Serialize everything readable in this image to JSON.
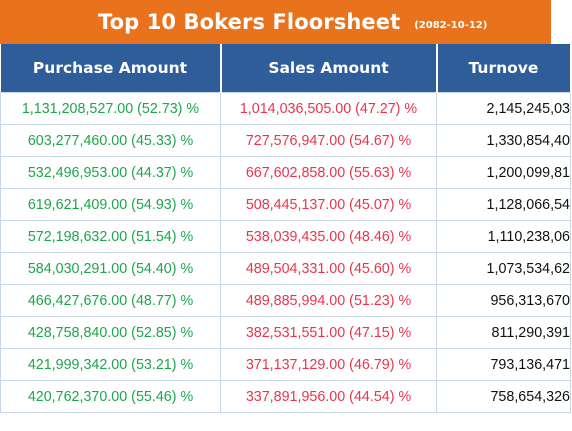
{
  "banner": {
    "title": "Top 10 Bokers Floorsheet",
    "date": "(2082-10-12)"
  },
  "colors": {
    "banner_bg": "#e9731c",
    "header_bg": "#2e5d9a",
    "purchase_text": "#1da64a",
    "sales_text": "#e8354d"
  },
  "table": {
    "headers": [
      "Purchase Amount",
      "Sales Amount",
      "Turnove"
    ],
    "rows": [
      {
        "purchase": "1,131,208,527.00 (52.73) %",
        "sales": "1,014,036,505.00 (47.27) %",
        "turnover": "2,145,245,03"
      },
      {
        "purchase": "603,277,460.00 (45.33) %",
        "sales": "727,576,947.00 (54.67) %",
        "turnover": "1,330,854,40"
      },
      {
        "purchase": "532,496,953.00 (44.37) %",
        "sales": "667,602,858.00 (55.63) %",
        "turnover": "1,200,099,81"
      },
      {
        "purchase": "619,621,409.00 (54.93) %",
        "sales": "508,445,137.00 (45.07) %",
        "turnover": "1,128,066,54"
      },
      {
        "purchase": "572,198,632.00 (51.54) %",
        "sales": "538,039,435.00 (48.46) %",
        "turnover": "1,110,238,06"
      },
      {
        "purchase": "584,030,291.00 (54.40) %",
        "sales": "489,504,331.00 (45.60) %",
        "turnover": "1,073,534,62"
      },
      {
        "purchase": "466,427,676.00 (48.77) %",
        "sales": "489,885,994.00 (51.23) %",
        "turnover": "956,313,670"
      },
      {
        "purchase": "428,758,840.00 (52.85) %",
        "sales": "382,531,551.00 (47.15) %",
        "turnover": "811,290,391"
      },
      {
        "purchase": "421,999,342.00 (53.21) %",
        "sales": "371,137,129.00 (46.79) %",
        "turnover": "793,136,471"
      },
      {
        "purchase": "420,762,370.00 (55.46) %",
        "sales": "337,891,956.00 (44.54) %",
        "turnover": "758,654,326"
      }
    ]
  }
}
